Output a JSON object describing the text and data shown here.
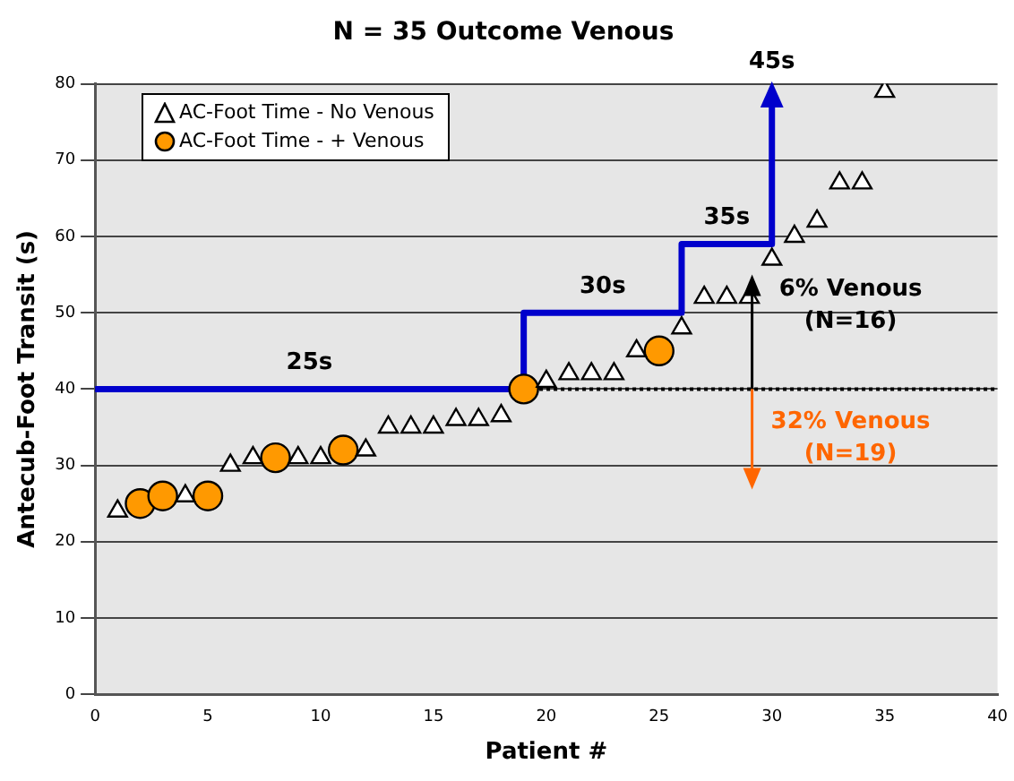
{
  "chart_data": {
    "type": "scatter",
    "title": "N = 35 Outcome Venous",
    "xlabel": "Patient #",
    "ylabel": "Antecub-Foot Transit (s)",
    "xlim": [
      0,
      40
    ],
    "xticks": [
      0,
      5,
      10,
      15,
      20,
      25,
      30,
      35,
      40
    ],
    "ylim": [
      0,
      80
    ],
    "yticks": [
      0,
      10,
      20,
      30,
      40,
      50,
      60,
      70,
      80
    ],
    "grid": "y",
    "legend": "top left",
    "series": [
      {
        "name": "AC-Foot Time - No Venous",
        "color": "#ffffff",
        "marker": "triangle",
        "x": [
          1,
          4,
          6,
          7,
          9,
          10,
          12,
          13,
          14,
          15,
          16,
          17,
          18,
          20,
          21,
          22,
          23,
          24,
          26,
          27,
          28,
          29,
          30,
          31,
          32,
          33,
          34,
          35
        ],
        "values": [
          24,
          26,
          30,
          31,
          31,
          31,
          32,
          35,
          35,
          35,
          36,
          36,
          36.5,
          41,
          42,
          42,
          42,
          45,
          48,
          52,
          52,
          52,
          57,
          60,
          62,
          67,
          67,
          79
        ]
      },
      {
        "name": "AC-Foot Time - + Venous",
        "color": "#ff9900",
        "marker": "circle",
        "x": [
          2,
          3,
          5,
          8,
          11,
          19,
          25
        ],
        "values": [
          25,
          26,
          26,
          31,
          32,
          40,
          45
        ]
      },
      {
        "type": "line",
        "color": "#0000cc",
        "marker": "none",
        "x": [
          0,
          19,
          19,
          26,
          26,
          30,
          30
        ],
        "values": [
          40,
          40,
          50,
          50,
          59,
          59,
          78
        ]
      }
    ],
    "ref_lines": [
      {
        "axis": "y",
        "value": 40,
        "color": "#000000",
        "line_style": "dotted"
      }
    ],
    "annotations": [
      "25s",
      "30s",
      "35s",
      "45s",
      "6% Venous\n(N=16)",
      "32% Venous\n(N=19)"
    ]
  }
}
